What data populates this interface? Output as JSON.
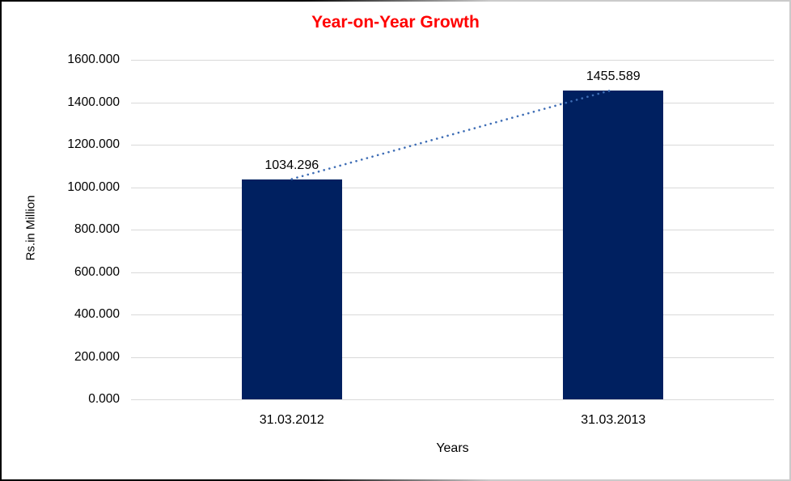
{
  "chart_data": {
    "type": "bar",
    "title": "Year-on-Year Growth",
    "title_color": "#FF0000",
    "categories": [
      "31.03.2012",
      "31.03.2013"
    ],
    "values": [
      1034.296,
      1455.589
    ],
    "data_labels": [
      "1034.296",
      "1455.589"
    ],
    "xlabel": "Years",
    "ylabel": "Rs.in Million",
    "ylim": [
      0,
      1600
    ],
    "ytick_step": 200,
    "ytick_labels": [
      "0.000",
      "200.000",
      "400.000",
      "600.000",
      "800.000",
      "1000.000",
      "1200.000",
      "1400.000",
      "1600.000"
    ],
    "bar_color": "#002060",
    "gridline_color": "#D9D9D9",
    "grid": true,
    "legend": "none",
    "trendline": {
      "style": "dotted",
      "color": "#3E6DB5",
      "from_value": 1034.296,
      "to_value": 1455.589
    }
  }
}
